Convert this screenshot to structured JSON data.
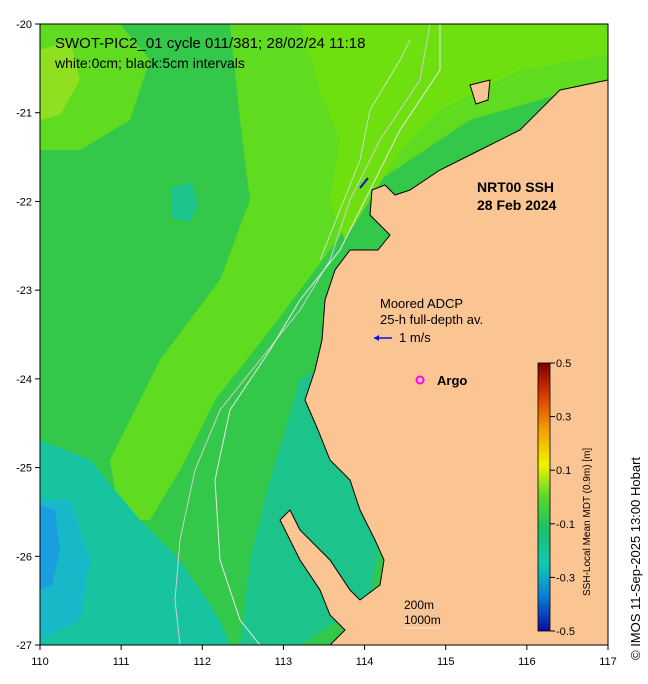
{
  "title": {
    "line1": "SWOT-PIC2_01 cycle 011/381; 28/02/24 11:18",
    "line2": "white:0cm; black:5cm intervals"
  },
  "product": {
    "name": "NRT00 SSH",
    "date": "28 Feb 2024"
  },
  "adcp": {
    "line1": "Moored ADCP",
    "line2": "25-h full-depth av.",
    "scale_label": "1 m/s"
  },
  "argo": {
    "label": "Argo",
    "symbol": "o",
    "color": "#ff00ff"
  },
  "isobaths": {
    "shallow": "200m",
    "deep": "1000m"
  },
  "credit": "© IMOS 11-Sep-2025 13:00 Hobart",
  "colorbar": {
    "label": "SSH-Local Mean MDT (0.9m) [m]",
    "ticks": [
      "0.5",
      "0.3",
      "0.1",
      "-0.1",
      "-0.3",
      "-0.5"
    ],
    "min": -0.5,
    "max": 0.5
  },
  "axes": {
    "x_ticks": [
      "110",
      "111",
      "112",
      "113",
      "114",
      "115",
      "116",
      "117"
    ],
    "y_ticks": [
      "-20",
      "-21",
      "-22",
      "-23",
      "-24",
      "-25",
      "-26",
      "-27"
    ],
    "lon_range": [
      110,
      117
    ],
    "lat_range": [
      -27,
      -20
    ]
  },
  "colors": {
    "land": "#fbc593",
    "ocean_base": "#33c84a",
    "coast": "#000000"
  }
}
